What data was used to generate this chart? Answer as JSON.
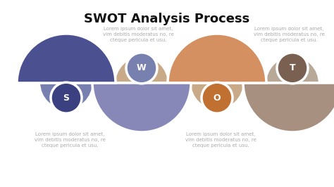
{
  "title": "SWOT Analysis Process",
  "title_fontsize": 13,
  "background_color": "#ffffff",
  "items": [
    {
      "letter": "S",
      "large_color": "#4a5090",
      "small_color": "#7880b0",
      "circle_color": "#3a4080",
      "top_up": true
    },
    {
      "letter": "W",
      "large_color": "#8888b8",
      "small_color": "#c8aa88",
      "circle_color": "#7880b0",
      "top_up": false
    },
    {
      "letter": "O",
      "large_color": "#d49060",
      "small_color": "#c8aa88",
      "circle_color": "#c07030",
      "top_up": true
    },
    {
      "letter": "T",
      "large_color": "#a89080",
      "small_color": "#b8a898",
      "circle_color": "#7a6050",
      "top_up": false
    }
  ],
  "lorem_text_top": "Lorem ipsum dolor sit amet,\nvim debitis moderatus no, re\ncteque pericula et usu.",
  "lorem_text_bot": "Lorem ipsum dolor sit amet,\nvim debitis moderatus no, re\ncteque pericula et usu.",
  "text_color": "#aaaaaa",
  "text_fontsize": 5.0
}
